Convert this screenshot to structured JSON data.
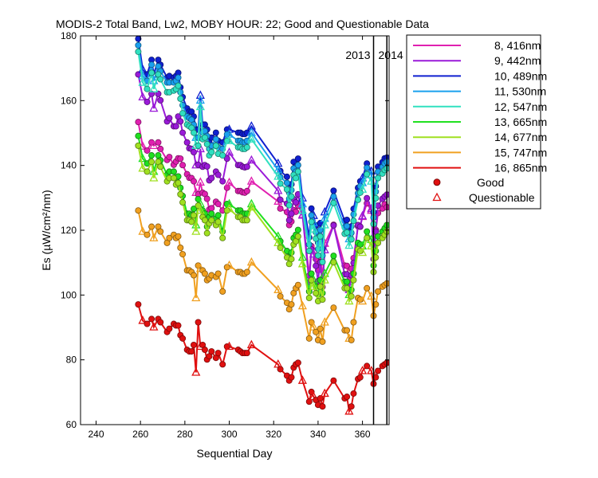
{
  "chart_data": {
    "type": "line",
    "title": "MODIS-2 Total Band,  Lw2, MOBY HOUR: 22;  Good and Questionable Data",
    "xlabel": "Sequential Day",
    "ylabel": "Es (µW/cm²/nm)",
    "xlim": [
      233,
      372
    ],
    "ylim": [
      60,
      180
    ],
    "xticks": [
      "240",
      "260",
      "280",
      "300",
      "320",
      "340",
      "360"
    ],
    "yticks": [
      "60",
      "80",
      "100",
      "120",
      "140",
      "160",
      "180"
    ],
    "grid": false,
    "legend_position": "right-outside-top",
    "markers": {
      "good": "Good",
      "questionable": "Questionable"
    },
    "year_boundaries": [
      {
        "x": 365,
        "labels": [
          "2013",
          "2014"
        ]
      },
      {
        "x": 371,
        "labels": []
      }
    ],
    "x": [
      259,
      261,
      263,
      265,
      266,
      268,
      269,
      272,
      273,
      275,
      276,
      277,
      278,
      279,
      281,
      282,
      283,
      284,
      285,
      286,
      287,
      288,
      289,
      290,
      291,
      292,
      294,
      295,
      297,
      299,
      300,
      304,
      305,
      306,
      307,
      308,
      310,
      322,
      323,
      326,
      327,
      328,
      329,
      330,
      331,
      333,
      336,
      337,
      338,
      339,
      340,
      341,
      342,
      343,
      347,
      352,
      353,
      354,
      355,
      356,
      358,
      359,
      360,
      362,
      364,
      365,
      366,
      367,
      369,
      370,
      371
    ],
    "questionable_x": [
      261,
      266,
      285,
      287,
      300,
      310,
      322,
      333,
      338,
      343,
      354,
      357,
      360,
      364
    ],
    "series": [
      {
        "name": "8, 416nm",
        "color": "#e020b0",
        "values": [
          153.4,
          145.9,
          144.6,
          147.1,
          146.1,
          147.1,
          145.1,
          141.7,
          142.6,
          140.2,
          141.2,
          142.2,
          142.1,
          140.1,
          137.3,
          136.2,
          136.1,
          135.1,
          131.6,
          131.1,
          134.8,
          131.6,
          131.2,
          129.7,
          126.4,
          126.8,
          128.8,
          128.1,
          126.1,
          133.1,
          134.7,
          132.1,
          132.1,
          131.7,
          131.6,
          132.1,
          135.1,
          128.9,
          126.7,
          125.6,
          121.6,
          122.7,
          126.2,
          125.7,
          127.6,
          124.8,
          106.0,
          115.1,
          113.8,
          111.1,
          107.6,
          111.9,
          105.1,
          115.9,
          121.7,
          109.1,
          109.0,
          104.1,
          108.1,
          111.4,
          121.2,
          121.1,
          124.2,
          128.3,
          126.1,
          115.1,
          120.1,
          125.3,
          126.7,
          128.0,
          127.1
        ]
      },
      {
        "name": "9, 442nm",
        "color": "#9a1ad8",
        "values": [
          168.1,
          161.1,
          159.6,
          162.1,
          157.6,
          162.1,
          160.1,
          153.6,
          154.6,
          152.1,
          152.1,
          155.1,
          153.6,
          150.1,
          147.1,
          145.3,
          145.1,
          144.1,
          140.1,
          140.2,
          145.1,
          139.6,
          140.1,
          139.7,
          135.4,
          136.1,
          138.1,
          137.1,
          135.1,
          142.1,
          144.0,
          140.1,
          140.1,
          139.6,
          139.4,
          139.6,
          141.6,
          132.2,
          129.4,
          128.2,
          123.1,
          125.1,
          129.6,
          128.6,
          131.1,
          124.6,
          103.9,
          114.1,
          112.6,
          109.0,
          104.3,
          110.1,
          102.5,
          113.9,
          121.5,
          106.4,
          106.4,
          101.6,
          106.1,
          109.9,
          121.6,
          121.1,
          124.4,
          129.9,
          126.6,
          111.1,
          119.6,
          127.6,
          129.7,
          130.4,
          131.0
        ]
      },
      {
        "name": "10, 489nm",
        "color": "#1020d0",
        "values": [
          179.1,
          169.6,
          168.1,
          172.6,
          168.1,
          172.6,
          171.1,
          167.1,
          167.6,
          167.1,
          167.6,
          168.6,
          164.1,
          161.1,
          157.6,
          156.6,
          156.6,
          155.1,
          151.1,
          151.1,
          161.6,
          152.6,
          152.6,
          151.1,
          147.1,
          148.6,
          150.1,
          147.6,
          147.1,
          151.1,
          151.1,
          150.1,
          150.1,
          149.7,
          149.7,
          150.1,
          152.1,
          140.6,
          138.3,
          136.5,
          131.6,
          134.2,
          141.1,
          139.7,
          142.1,
          129.9,
          117.8,
          126.7,
          124.5,
          121.5,
          116.2,
          122.2,
          114.3,
          125.6,
          132.2,
          122.9,
          123.2,
          119.1,
          121.2,
          126.6,
          133.1,
          135.1,
          136.1,
          140.6,
          138.2,
          125.6,
          133.6,
          139.6,
          141.0,
          142.2,
          142.4
        ]
      },
      {
        "name": "11, 530nm",
        "color": "#1aa0ee",
        "values": [
          177.1,
          167.6,
          166.1,
          171.1,
          166.1,
          170.6,
          169.1,
          165.6,
          165.6,
          165.6,
          166.1,
          167.1,
          162.6,
          158.6,
          155.1,
          154.6,
          154.1,
          152.6,
          148.6,
          148.6,
          160.1,
          150.1,
          150.6,
          149.1,
          145.1,
          146.1,
          148.1,
          145.6,
          145.1,
          149.6,
          149.6,
          147.6,
          147.6,
          147.1,
          147.1,
          147.6,
          150.1,
          138.6,
          136.4,
          134.6,
          129.7,
          132.4,
          139.1,
          138.1,
          140.1,
          128.1,
          115.6,
          124.6,
          122.3,
          119.4,
          114.2,
          120.1,
          112.2,
          123.6,
          130.4,
          120.9,
          121.3,
          117.3,
          119.2,
          124.9,
          131.4,
          133.6,
          134.6,
          139.3,
          137.1,
          123.9,
          131.9,
          138.1,
          139.5,
          140.6,
          141.1
        ]
      },
      {
        "name": "12, 547nm",
        "color": "#30e0c0",
        "values": [
          175.1,
          165.6,
          163.6,
          168.6,
          163.6,
          168.1,
          166.6,
          162.6,
          162.6,
          163.1,
          163.6,
          164.6,
          160.6,
          156.1,
          152.6,
          152.1,
          151.6,
          150.1,
          146.1,
          146.1,
          158.1,
          148.1,
          148.6,
          146.6,
          143.1,
          144.1,
          146.1,
          143.6,
          143.1,
          147.6,
          147.6,
          145.6,
          145.6,
          145.1,
          145.1,
          145.6,
          148.1,
          136.6,
          134.4,
          132.6,
          127.7,
          130.4,
          137.1,
          136.1,
          138.1,
          126.1,
          113.6,
          122.6,
          120.3,
          117.4,
          112.2,
          118.1,
          110.2,
          121.6,
          128.4,
          118.9,
          119.3,
          115.3,
          117.2,
          122.9,
          129.4,
          131.6,
          132.6,
          137.3,
          135.1,
          121.9,
          129.9,
          136.1,
          137.5,
          138.6,
          139.1
        ]
      },
      {
        "name": "13, 665nm",
        "color": "#20e020",
        "values": [
          149.1,
          142.1,
          140.6,
          143.1,
          138.1,
          143.1,
          141.6,
          137.1,
          138.1,
          138.1,
          136.1,
          136.6,
          133.1,
          130.6,
          125.1,
          125.1,
          124.6,
          126.6,
          121.6,
          129.6,
          128.1,
          126.1,
          125.1,
          121.1,
          124.1,
          125.1,
          123.6,
          124.6,
          119.6,
          128.1,
          128.1,
          126.1,
          126.1,
          125.1,
          125.1,
          125.1,
          128.1,
          118.1,
          116.6,
          113.6,
          111.6,
          113.1,
          117.6,
          118.6,
          120.1,
          111.6,
          101.1,
          106.6,
          104.6,
          102.6,
          100.1,
          104.6,
          100.6,
          106.6,
          112.1,
          104.1,
          104.1,
          100.1,
          101.6,
          106.6,
          116.1,
          115.6,
          115.1,
          119.6,
          117.1,
          109.1,
          113.6,
          118.1,
          119.6,
          120.6,
          121.6
        ]
      },
      {
        "name": "14, 677nm",
        "color": "#a0e020",
        "values": [
          146.1,
          139.1,
          138.1,
          141.1,
          136.1,
          141.1,
          139.6,
          135.1,
          136.1,
          136.1,
          134.1,
          134.6,
          131.1,
          128.6,
          123.1,
          123.1,
          122.6,
          124.6,
          119.6,
          127.6,
          126.1,
          124.1,
          123.1,
          119.1,
          122.1,
          123.1,
          121.6,
          122.6,
          117.6,
          126.1,
          126.6,
          124.1,
          124.1,
          123.1,
          123.1,
          123.1,
          127.1,
          116.1,
          114.6,
          111.6,
          109.6,
          111.1,
          115.6,
          116.6,
          118.1,
          109.6,
          99.1,
          104.6,
          102.6,
          100.6,
          98.1,
          102.6,
          98.6,
          104.6,
          110.1,
          102.1,
          102.1,
          98.1,
          99.6,
          104.6,
          114.1,
          113.6,
          113.1,
          117.6,
          115.1,
          107.1,
          111.6,
          116.1,
          117.6,
          118.6,
          119.6
        ]
      },
      {
        "name": "15, 747nm",
        "color": "#f0a020",
        "values": [
          126.1,
          119.6,
          118.6,
          121.1,
          117.6,
          121.1,
          119.6,
          116.1,
          117.6,
          118.6,
          117.6,
          118.1,
          114.6,
          112.6,
          107.6,
          107.6,
          107.1,
          106.1,
          99.1,
          109.1,
          108.1,
          107.6,
          106.6,
          104.6,
          105.1,
          106.1,
          105.6,
          106.6,
          101.1,
          108.6,
          109.1,
          107.1,
          107.1,
          106.6,
          106.6,
          107.1,
          110.1,
          101.6,
          99.6,
          97.6,
          95.6,
          97.1,
          100.6,
          102.1,
          103.1,
          96.6,
          86.6,
          91.6,
          90.1,
          88.6,
          86.1,
          89.6,
          85.6,
          91.6,
          96.1,
          89.1,
          89.1,
          86.6,
          86.1,
          91.6,
          99.1,
          98.6,
          98.1,
          102.1,
          99.6,
          93.6,
          97.1,
          101.1,
          102.6,
          103.1,
          103.6
        ]
      },
      {
        "name": "16, 865nm",
        "color": "#e01010",
        "values": [
          97.1,
          92.1,
          91.1,
          92.6,
          90.1,
          92.6,
          91.6,
          88.6,
          89.6,
          91.1,
          90.6,
          90.6,
          87.6,
          86.6,
          83.1,
          82.6,
          82.6,
          84.6,
          76.1,
          91.6,
          84.1,
          84.6,
          83.1,
          80.1,
          81.1,
          82.6,
          80.6,
          82.1,
          78.6,
          84.1,
          84.1,
          83.1,
          82.6,
          82.1,
          82.1,
          82.1,
          84.6,
          78.6,
          77.1,
          75.1,
          73.6,
          74.6,
          77.6,
          78.6,
          79.1,
          73.6,
          67.1,
          70.1,
          68.6,
          67.6,
          66.1,
          68.1,
          65.6,
          69.6,
          73.6,
          68.1,
          68.6,
          64.1,
          65.6,
          69.6,
          74.1,
          74.6,
          76.6,
          78.1,
          76.6,
          72.6,
          74.6,
          76.6,
          78.1,
          78.6,
          79.1
        ]
      }
    ]
  }
}
